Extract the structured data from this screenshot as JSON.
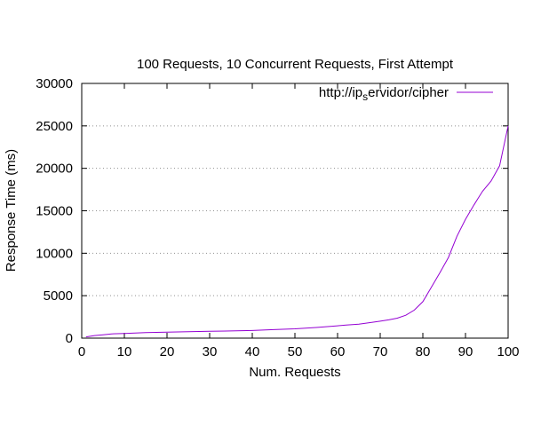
{
  "chart_data": {
    "type": "line",
    "title": "100 Requests, 10 Concurrent Requests, First Attempt",
    "xlabel": "Num. Requests",
    "ylabel": "Response Time (ms)",
    "xlim": [
      0,
      100
    ],
    "ylim": [
      0,
      30000
    ],
    "xticks": [
      0,
      10,
      20,
      30,
      40,
      50,
      60,
      70,
      80,
      90,
      100
    ],
    "yticks": [
      0,
      5000,
      10000,
      15000,
      20000,
      25000,
      30000
    ],
    "grid": "horizontal dotted",
    "legend": {
      "placement": "top-right",
      "entry": {
        "prefix": "http://ip",
        "subscript": "s",
        "suffix": "ervidor/cipher"
      }
    },
    "series": [
      {
        "label": "http://ipservidor/cipher",
        "color": "#9400d3",
        "x": [
          1,
          3,
          5,
          7,
          10,
          15,
          20,
          25,
          30,
          35,
          40,
          45,
          50,
          55,
          60,
          62,
          65,
          68,
          70,
          72,
          74,
          76,
          78,
          80,
          82,
          84,
          86,
          88,
          90,
          92,
          93,
          94,
          96,
          98,
          100
        ],
        "y": [
          150,
          300,
          400,
          500,
          550,
          650,
          700,
          750,
          800,
          850,
          900,
          1000,
          1100,
          1250,
          1450,
          1550,
          1650,
          1850,
          2000,
          2150,
          2350,
          2700,
          3300,
          4300,
          6000,
          7700,
          9500,
          12000,
          14000,
          15700,
          16500,
          17300,
          18500,
          20300,
          25000
        ]
      }
    ]
  }
}
